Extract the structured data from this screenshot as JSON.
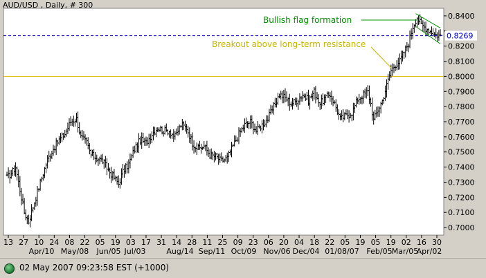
{
  "chart_data": {
    "type": "ohlc",
    "title": "AUD/USD , Daily, # 300",
    "y_range": [
      0.695,
      0.845
    ],
    "y_ticks": [
      0.84,
      0.83,
      0.82,
      0.81,
      0.8,
      0.79,
      0.78,
      0.77,
      0.76,
      0.75,
      0.74,
      0.73,
      0.72,
      0.71,
      0.7
    ],
    "y_tick_labels": [
      "0.8400",
      "0.8200",
      "0.8100",
      "0.8000",
      "0.7900",
      "0.7800",
      "0.7700",
      "0.7600",
      "0.7500",
      "0.7400",
      "0.7300",
      "0.7200",
      "0.7100",
      "0.7000"
    ],
    "num_bars": 300,
    "x_day_labels": [
      "13",
      "27",
      "10",
      "24",
      "08",
      "22",
      "05",
      "19",
      "03",
      "17",
      "31",
      "14",
      "28",
      "11",
      "25",
      "09",
      "23",
      "06",
      "20",
      "04",
      "18",
      "22",
      "05",
      "19",
      "05",
      "19",
      "02",
      "16",
      "30"
    ],
    "x_month_labels": [
      "Apr/10",
      "May/08",
      "Jun/05",
      "Jul/03",
      "Aug/14",
      "Sep/11",
      "Oct/09",
      "Nov/06",
      "Dec/04",
      "01/08/07",
      "Feb/05",
      "Mar/05",
      "Apr/02"
    ],
    "close_keypoints": [
      [
        0,
        0.733
      ],
      [
        3,
        0.736
      ],
      [
        6,
        0.74
      ],
      [
        9,
        0.725
      ],
      [
        12,
        0.71
      ],
      [
        15,
        0.704
      ],
      [
        19,
        0.717
      ],
      [
        23,
        0.73
      ],
      [
        28,
        0.745
      ],
      [
        32,
        0.752
      ],
      [
        36,
        0.758
      ],
      [
        40,
        0.762
      ],
      [
        44,
        0.77
      ],
      [
        48,
        0.772
      ],
      [
        51,
        0.76
      ],
      [
        55,
        0.756
      ],
      [
        58,
        0.748
      ],
      [
        62,
        0.746
      ],
      [
        66,
        0.744
      ],
      [
        70,
        0.738
      ],
      [
        74,
        0.733
      ],
      [
        77,
        0.729
      ],
      [
        80,
        0.737
      ],
      [
        84,
        0.742
      ],
      [
        88,
        0.752
      ],
      [
        92,
        0.758
      ],
      [
        96,
        0.756
      ],
      [
        100,
        0.762
      ],
      [
        104,
        0.766
      ],
      [
        108,
        0.764
      ],
      [
        112,
        0.764
      ],
      [
        116,
        0.76
      ],
      [
        120,
        0.768
      ],
      [
        124,
        0.766
      ],
      [
        128,
        0.756
      ],
      [
        132,
        0.752
      ],
      [
        136,
        0.754
      ],
      [
        140,
        0.748
      ],
      [
        144,
        0.747
      ],
      [
        148,
        0.744
      ],
      [
        152,
        0.746
      ],
      [
        156,
        0.754
      ],
      [
        160,
        0.762
      ],
      [
        164,
        0.768
      ],
      [
        168,
        0.77
      ],
      [
        172,
        0.764
      ],
      [
        176,
        0.768
      ],
      [
        180,
        0.772
      ],
      [
        184,
        0.78
      ],
      [
        188,
        0.788
      ],
      [
        192,
        0.786
      ],
      [
        196,
        0.782
      ],
      [
        200,
        0.784
      ],
      [
        204,
        0.788
      ],
      [
        208,
        0.784
      ],
      [
        212,
        0.79
      ],
      [
        216,
        0.782
      ],
      [
        220,
        0.786
      ],
      [
        223,
        0.788
      ],
      [
        226,
        0.782
      ],
      [
        230,
        0.772
      ],
      [
        234,
        0.774
      ],
      [
        238,
        0.776
      ],
      [
        242,
        0.785
      ],
      [
        246,
        0.788
      ],
      [
        249,
        0.79
      ],
      [
        251,
        0.782
      ],
      [
        253,
        0.771
      ],
      [
        256,
        0.778
      ],
      [
        259,
        0.784
      ],
      [
        262,
        0.794
      ],
      [
        265,
        0.804
      ],
      [
        268,
        0.808
      ],
      [
        271,
        0.81
      ],
      [
        274,
        0.816
      ],
      [
        277,
        0.822
      ],
      [
        280,
        0.833
      ],
      [
        283,
        0.839
      ],
      [
        286,
        0.834
      ],
      [
        289,
        0.832
      ],
      [
        292,
        0.83
      ],
      [
        295,
        0.828
      ],
      [
        299,
        0.8269
      ]
    ],
    "horizontal_lines": [
      {
        "value": 0.8269,
        "label": "0.8269",
        "color": "#0000cc",
        "style": "dashed"
      },
      {
        "value": 0.8,
        "label": "",
        "color": "#d4b800",
        "style": "solid"
      }
    ],
    "annotations": [
      {
        "text": "Bullish flag formation",
        "color": "#009000"
      },
      {
        "text": "Breakout above long-term resistance",
        "color": "#c8b400"
      }
    ],
    "colors": {
      "plot_bg": "#ffffff",
      "bars": "#000000",
      "price_tag_bg": "#ffffff",
      "price_tag_text": "#0000cc"
    }
  },
  "status": {
    "timestamp": "02 May 2007 09:23:58  EST (+1000)"
  }
}
